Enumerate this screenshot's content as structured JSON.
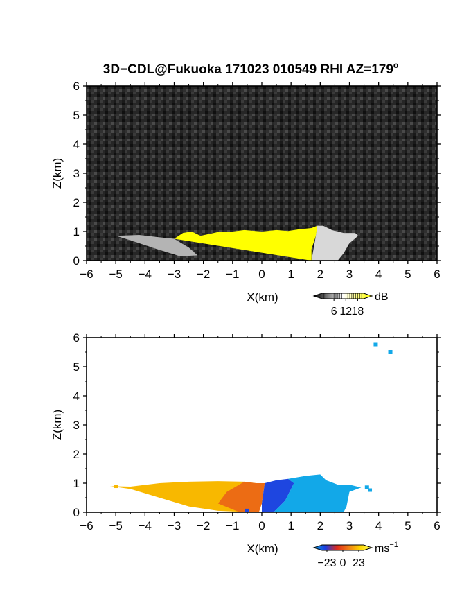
{
  "title": {
    "main": "3D−CDL@Fukuoka 171023 010549 RHI AZ=179",
    "sup": "o"
  },
  "charts": [
    {
      "chart_data": {
        "type": "heatmap",
        "title": "",
        "xlabel": "X(km)",
        "ylabel": "Z(km)",
        "xlim": [
          -6,
          6
        ],
        "ylim": [
          0,
          6
        ],
        "xticks": [
          "−6",
          "−5",
          "−4",
          "−3",
          "−2",
          "−1",
          "0",
          "1",
          "2",
          "3",
          "4",
          "5",
          "6"
        ],
        "yticks": [
          "0",
          "1",
          "2",
          "3",
          "4",
          "5",
          "6"
        ],
        "quantity": "SNR",
        "background": "#2a2a2a",
        "colorbar": {
          "unit": "dB",
          "ticks": [
            "6",
            "12",
            "18"
          ],
          "min": 0,
          "max": 21,
          "colors": [
            "#000000",
            "#ffffff",
            "#ffff00"
          ]
        },
        "regions": [
          {
            "name": "saturated echo",
            "color": "#ffff00",
            "outline": [
              [
                -3,
                0.75
              ],
              [
                -2.7,
                0.95
              ],
              [
                -2.4,
                1.0
              ],
              [
                -2.1,
                0.85
              ],
              [
                -1.5,
                0.98
              ],
              [
                -1.0,
                1.0
              ],
              [
                -0.6,
                1.05
              ],
              [
                0,
                1.0
              ],
              [
                0.5,
                1.05
              ],
              [
                0.9,
                1.02
              ],
              [
                1.3,
                1.08
              ],
              [
                1.7,
                1.12
              ],
              [
                1.9,
                1.2
              ],
              [
                1.85,
                0.85
              ],
              [
                1.7,
                0.4
              ],
              [
                1.7,
                0
              ]
            ]
          },
          {
            "name": "weak echo west",
            "color": "#b4b4b4",
            "outline": [
              [
                -5.0,
                0.85
              ],
              [
                -4.2,
                0.88
              ],
              [
                -3.5,
                0.8
              ],
              [
                -3,
                0.75
              ],
              [
                -2.5,
                0.45
              ],
              [
                -2.2,
                0.18
              ],
              [
                -2.8,
                0.15
              ],
              [
                -3.6,
                0.4
              ],
              [
                -4.5,
                0.7
              ]
            ]
          },
          {
            "name": "weak echo east",
            "color": "#d8d8d8",
            "outline": [
              [
                1.7,
                0
              ],
              [
                1.85,
                0.85
              ],
              [
                1.9,
                1.2
              ],
              [
                2.1,
                1.2
              ],
              [
                2.4,
                1.05
              ],
              [
                2.8,
                0.95
              ],
              [
                3.2,
                0.95
              ],
              [
                3.3,
                0.85
              ],
              [
                3.0,
                0.6
              ],
              [
                2.8,
                0.25
              ],
              [
                2.6,
                0
              ]
            ]
          }
        ]
      }
    },
    {
      "chart_data": {
        "type": "heatmap",
        "title": "",
        "xlabel": "X(km)",
        "ylabel": "Z(km)",
        "xlim": [
          -6,
          6
        ],
        "ylim": [
          0,
          6
        ],
        "xticks": [
          "−6",
          "−5",
          "−4",
          "−3",
          "−2",
          "−1",
          "0",
          "1",
          "2",
          "3",
          "4",
          "5",
          "6"
        ],
        "yticks": [
          "0",
          "1",
          "2",
          "3",
          "4",
          "5",
          "6"
        ],
        "quantity": "Doppler velocity",
        "background": "#ffffff",
        "colorbar": {
          "unit": "ms",
          "unit_sup": "−1",
          "ticks": [
            "−23",
            "0",
            "23"
          ],
          "min": -30,
          "max": 30,
          "colors": [
            "#0aa0d8",
            "#1a3ce0",
            "#e02a1a",
            "#f07d14",
            "#ffd700",
            "#ffff64"
          ]
        },
        "regions": [
          {
            "name": "outbound west",
            "color": "#f8b800",
            "outline": [
              [
                -5.2,
                0.9
              ],
              [
                -4.5,
                0.88
              ],
              [
                -3.5,
                1.0
              ],
              [
                -2.5,
                1.05
              ],
              [
                -1.5,
                1.07
              ],
              [
                -0.6,
                1.05
              ],
              [
                -0.2,
                1.0
              ],
              [
                -0.1,
                0.6
              ],
              [
                -0.3,
                0
              ],
              [
                -1.5,
                0.05
              ],
              [
                -2.5,
                0.2
              ],
              [
                -3.5,
                0.5
              ],
              [
                -4.5,
                0.8
              ]
            ]
          },
          {
            "name": "outbound core",
            "color": "#ec6c14",
            "outline": [
              [
                -0.6,
                1.05
              ],
              [
                -0.2,
                1.0
              ],
              [
                0.1,
                1.0
              ],
              [
                0.0,
                0.3
              ],
              [
                -0.1,
                0
              ],
              [
                -0.8,
                0.02
              ],
              [
                -1.5,
                0.3
              ],
              [
                -1.2,
                0.7
              ]
            ]
          },
          {
            "name": "inbound core",
            "color": "#1e46e0",
            "outline": [
              [
                0.1,
                1.0
              ],
              [
                0.5,
                1.1
              ],
              [
                0.9,
                1.15
              ],
              [
                1.1,
                1.0
              ],
              [
                0.8,
                0.4
              ],
              [
                0.4,
                0
              ],
              [
                0.0,
                0.0
              ],
              [
                0.0,
                0.3
              ]
            ]
          },
          {
            "name": "inbound east",
            "color": "#12a8e8",
            "outline": [
              [
                0.9,
                1.15
              ],
              [
                1.5,
                1.25
              ],
              [
                2.0,
                1.3
              ],
              [
                2.2,
                1.1
              ],
              [
                2.6,
                0.95
              ],
              [
                3.0,
                0.95
              ],
              [
                3.4,
                0.85
              ],
              [
                3.0,
                0.7
              ],
              [
                2.9,
                0.2
              ],
              [
                2.8,
                0
              ],
              [
                0.4,
                0
              ],
              [
                0.8,
                0.4
              ],
              [
                1.1,
                1.0
              ]
            ]
          }
        ],
        "pixels": [
          {
            "x": 3.9,
            "y": 5.75,
            "color": "#12a8e8"
          },
          {
            "x": 4.4,
            "y": 5.5,
            "color": "#12a8e8"
          },
          {
            "x": 3.6,
            "y": 0.85,
            "color": "#12a8e8"
          },
          {
            "x": 3.7,
            "y": 0.75,
            "color": "#12a8e8"
          },
          {
            "x": 2.1,
            "y": 0.9,
            "color": "#12a8e8"
          },
          {
            "x": -5.0,
            "y": 0.88,
            "color": "#f8b800"
          },
          {
            "x": -0.5,
            "y": 0.05,
            "color": "#1e46e0"
          }
        ]
      }
    }
  ]
}
